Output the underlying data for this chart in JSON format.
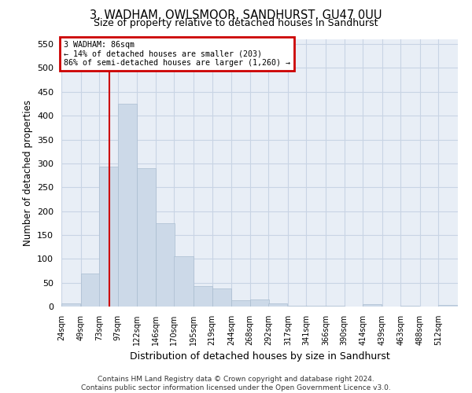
{
  "title": "3, WADHAM, OWLSMOOR, SANDHURST, GU47 0UU",
  "subtitle": "Size of property relative to detached houses in Sandhurst",
  "xlabel": "Distribution of detached houses by size in Sandhurst",
  "ylabel": "Number of detached properties",
  "footer_line1": "Contains HM Land Registry data © Crown copyright and database right 2024.",
  "footer_line2": "Contains public sector information licensed under the Open Government Licence v3.0.",
  "bar_color": "#ccd9e8",
  "bar_edge_color": "#aabdd0",
  "grid_color": "#c8d4e4",
  "background_color": "#e8eef6",
  "annotation_box_color": "#cc0000",
  "vline_color": "#cc0000",
  "bin_labels": [
    "24sqm",
    "49sqm",
    "73sqm",
    "97sqm",
    "122sqm",
    "146sqm",
    "170sqm",
    "195sqm",
    "219sqm",
    "244sqm",
    "268sqm",
    "292sqm",
    "317sqm",
    "341sqm",
    "366sqm",
    "390sqm",
    "414sqm",
    "439sqm",
    "463sqm",
    "488sqm",
    "512sqm"
  ],
  "bin_edges": [
    24,
    49,
    73,
    97,
    122,
    146,
    170,
    195,
    219,
    244,
    268,
    292,
    317,
    341,
    366,
    390,
    414,
    439,
    463,
    488,
    512
  ],
  "bar_heights": [
    7,
    70,
    293,
    425,
    290,
    175,
    105,
    43,
    38,
    14,
    15,
    7,
    2,
    1,
    2,
    0,
    5,
    0,
    1,
    0,
    3
  ],
  "ylim": [
    0,
    560
  ],
  "yticks": [
    0,
    50,
    100,
    150,
    200,
    250,
    300,
    350,
    400,
    450,
    500,
    550
  ],
  "property_size": 86,
  "annotation_text_line1": "3 WADHAM: 86sqm",
  "annotation_text_line2": "← 14% of detached houses are smaller (203)",
  "annotation_text_line3": "86% of semi-detached houses are larger (1,260) →"
}
